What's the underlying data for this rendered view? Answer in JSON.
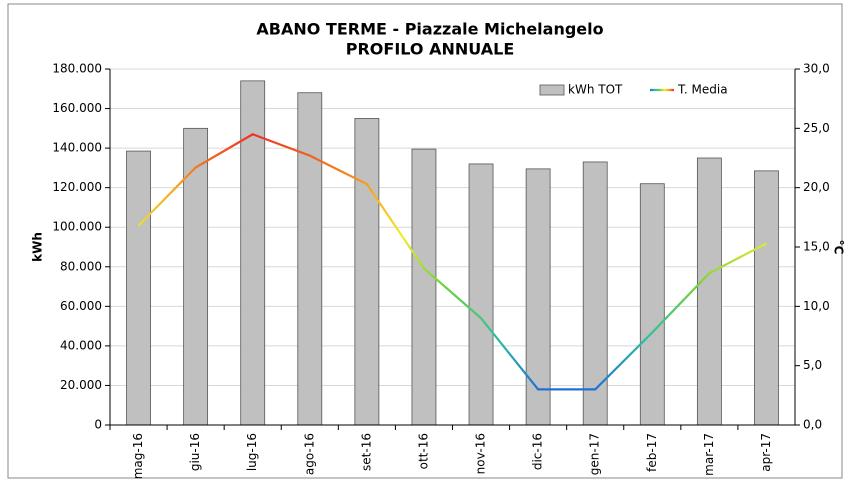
{
  "chart_data": {
    "type": "bar_line",
    "title": "ABANO TERME - Piazzale Michelangelo",
    "subtitle": "PROFILO ANNUALE",
    "y_label": "kWh",
    "y2_label": "°C",
    "categories": [
      "mag-16",
      "giu-16",
      "lug-16",
      "ago-16",
      "set-16",
      "ott-16",
      "nov-16",
      "dic-16",
      "gen-17",
      "feb-17",
      "mar-17",
      "apr-17"
    ],
    "series": [
      {
        "name": "kWh TOT",
        "type": "bar",
        "color": "#c0c0c0",
        "values": [
          138500,
          150000,
          174000,
          168000,
          155000,
          139500,
          132000,
          129500,
          133000,
          122000,
          135000,
          128500
        ]
      },
      {
        "name": "T. Media",
        "type": "line",
        "axis": "y2",
        "color": [
          "#1f6fd8",
          "#2fc0a0",
          "#70d040",
          "#f2ec30",
          "#f5a020",
          "#ee3020"
        ],
        "values": [
          16.8,
          21.7,
          24.5,
          22.7,
          20.3,
          13.2,
          9.0,
          3.0,
          3.0,
          7.8,
          12.8,
          15.3
        ]
      }
    ],
    "ylim": [
      0,
      180000
    ],
    "yticks": [
      0,
      {
        "value": 20000,
        "label": "20.000"
      },
      {
        "value": 40000,
        "label": "40.000"
      },
      {
        "value": 60000,
        "label": "60.000"
      },
      {
        "value": 80000,
        "label": "80.000"
      },
      {
        "value": 100000,
        "label": "100.000"
      },
      {
        "value": 120000,
        "label": "120.000"
      },
      {
        "value": 140000,
        "label": "140.000"
      },
      {
        "value": 160000,
        "label": "160.000"
      },
      {
        "value": 180000,
        "label": "180.000"
      }
    ],
    "y2lim": [
      0,
      30
    ],
    "y2ticks": [
      {
        "value": 0,
        "label": "0,0"
      },
      {
        "value": 5,
        "label": "5,0"
      },
      {
        "value": 10,
        "label": "10,0"
      },
      {
        "value": 15,
        "label": "15,0"
      },
      {
        "value": 20,
        "label": "20,0"
      },
      {
        "value": 25,
        "label": "25,0"
      },
      {
        "value": 30,
        "label": "30,0"
      }
    ],
    "grid": true,
    "legend": "top-right"
  }
}
